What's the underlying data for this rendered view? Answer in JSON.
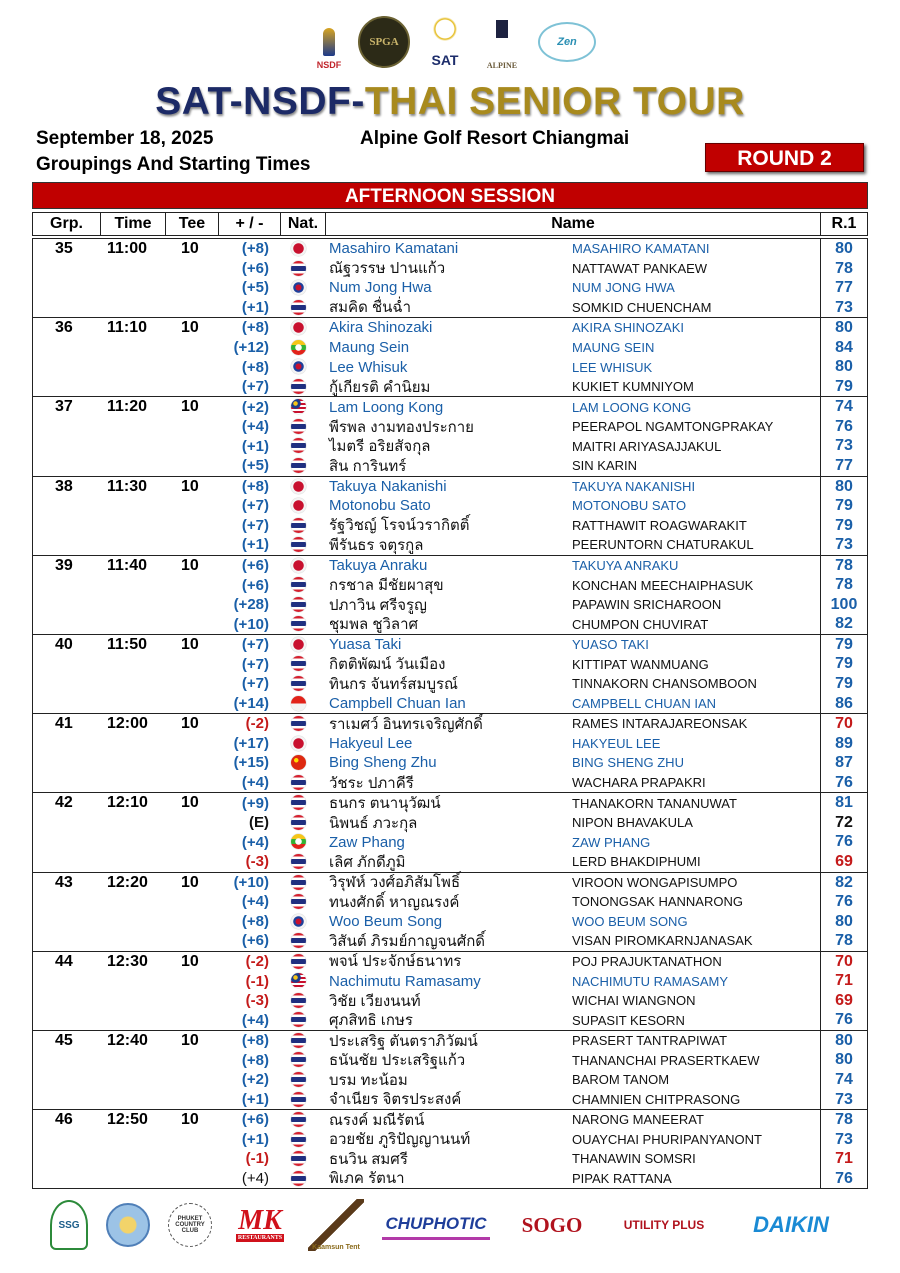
{
  "logos_top": [
    "NSDF",
    "SPGA",
    "SAT",
    "ALPINE",
    "Zen"
  ],
  "title_part1": "SAT-NSDF-",
  "title_part2": "THAI SENIOR TOUR",
  "date": "September 18, 2025",
  "subtitle": "Groupings And Starting Times",
  "venue": "Alpine Golf Resort Chiangmai",
  "round": "ROUND 2",
  "session": "AFTERNOON SESSION",
  "columns": {
    "grp": "Grp.",
    "time": "Time",
    "tee": "Tee",
    "diff": "+ / -",
    "nat": "Nat.",
    "name": "Name",
    "r1": "R.1"
  },
  "colors": {
    "over": "#1a5fa8",
    "under": "#c41a1a",
    "banner": "#c00000",
    "title_navy": "#1c2a66",
    "title_gold": "#a88a1e"
  },
  "groups": [
    {
      "grp": "35",
      "time": "11:00",
      "tee": "10",
      "players": [
        {
          "diff": "(+8)",
          "tone": "over",
          "flag": "jp",
          "name": "Masahiro  Kamatani",
          "name_en": "MASAHIRO  KAMATANI",
          "r1": "80",
          "foreign": true
        },
        {
          "diff": "(+6)",
          "tone": "over",
          "flag": "th",
          "name": "ณัฐวรรษ  ปานแก้ว",
          "name_en": "NATTAWAT  PANKAEW",
          "r1": "78",
          "foreign": false
        },
        {
          "diff": "(+5)",
          "tone": "over",
          "flag": "kr",
          "name": "Num Jong Hwa",
          "name_en": "NUM JONG HWA",
          "r1": "77",
          "foreign": true
        },
        {
          "diff": "(+1)",
          "tone": "over",
          "flag": "th",
          "name": "สมคิด  ชื่นฉ่ำ",
          "name_en": "SOMKID CHUENCHAM",
          "r1": "73",
          "foreign": false
        }
      ]
    },
    {
      "grp": "36",
      "time": "11:10",
      "tee": "10",
      "players": [
        {
          "diff": "(+8)",
          "tone": "over",
          "flag": "jp",
          "name": "Akira  Shinozaki",
          "name_en": "AKIRA  SHINOZAKI",
          "r1": "80",
          "foreign": true
        },
        {
          "diff": "(+12)",
          "tone": "over",
          "flag": "mm",
          "name": "Maung Sein",
          "name_en": "MAUNG SEIN",
          "r1": "84",
          "foreign": true
        },
        {
          "diff": "(+8)",
          "tone": "over",
          "flag": "kr",
          "name": "Lee Whisuk",
          "name_en": "LEE WHISUK",
          "r1": "80",
          "foreign": true
        },
        {
          "diff": "(+7)",
          "tone": "over",
          "flag": "th",
          "name": "กู้เกียรติ  คำนิยม",
          "name_en": "KUKIET  KUMNIYOM",
          "r1": "79",
          "foreign": false
        }
      ]
    },
    {
      "grp": "37",
      "time": "11:20",
      "tee": "10",
      "players": [
        {
          "diff": "(+2)",
          "tone": "over",
          "flag": "my",
          "name": "Lam Loong Kong",
          "name_en": "LAM LOONG KONG",
          "r1": "74",
          "foreign": true
        },
        {
          "diff": "(+4)",
          "tone": "over",
          "flag": "th",
          "name": "พีรพล  งามทองประกาย",
          "name_en": "PEERAPOL  NGAMTONGPRAKAY",
          "r1": "76",
          "foreign": false
        },
        {
          "diff": "(+1)",
          "tone": "over",
          "flag": "th",
          "name": "ไมตรี  อริยสัจกุล",
          "name_en": "MAITRI  ARIYASAJJAKUL",
          "r1": "73",
          "foreign": false
        },
        {
          "diff": "(+5)",
          "tone": "over",
          "flag": "th",
          "name": "สิน  การินทร์",
          "name_en": "SIN  KARIN",
          "r1": "77",
          "foreign": false
        }
      ]
    },
    {
      "grp": "38",
      "time": "11:30",
      "tee": "10",
      "players": [
        {
          "diff": "(+8)",
          "tone": "over",
          "flag": "jp",
          "name": "Takuya  Nakanishi",
          "name_en": "TAKUYA  NAKANISHI",
          "r1": "80",
          "foreign": true
        },
        {
          "diff": "(+7)",
          "tone": "over",
          "flag": "jp",
          "name": "Motonobu  Sato",
          "name_en": "MOTONOBU  SATO",
          "r1": "79",
          "foreign": true
        },
        {
          "diff": "(+7)",
          "tone": "over",
          "flag": "th",
          "name": "รัฐวิชญ์  โรจน์วรากิตติ์",
          "name_en": "RATTHAWIT  ROAGWARAKIT",
          "r1": "79",
          "foreign": false
        },
        {
          "diff": "(+1)",
          "tone": "over",
          "flag": "th",
          "name": "พีรันธร  จตุรกูล",
          "name_en": "PEERUNTORN  CHATURAKUL",
          "r1": "73",
          "foreign": false
        }
      ]
    },
    {
      "grp": "39",
      "time": "11:40",
      "tee": "10",
      "players": [
        {
          "diff": "(+6)",
          "tone": "over",
          "flag": "jp",
          "name": "Takuya  Anraku",
          "name_en": "TAKUYA  ANRAKU",
          "r1": "78",
          "foreign": true
        },
        {
          "diff": "(+6)",
          "tone": "over",
          "flag": "th",
          "name": "กรชาล  มีชัยผาสุข",
          "name_en": "KONCHAN  MEECHAIPHASUK",
          "r1": "78",
          "foreign": false
        },
        {
          "diff": "(+28)",
          "tone": "over",
          "flag": "th",
          "name": "ปภาวิน  ศรีจรูญ",
          "name_en": "PAPAWIN SRICHAROON",
          "r1": "100",
          "foreign": false
        },
        {
          "diff": "(+10)",
          "tone": "over",
          "flag": "th",
          "name": "ชุมพล  ชูวิลาศ",
          "name_en": "CHUMPON  CHUVIRAT",
          "r1": "82",
          "foreign": false
        }
      ]
    },
    {
      "grp": "40",
      "time": "11:50",
      "tee": "10",
      "players": [
        {
          "diff": "(+7)",
          "tone": "over",
          "flag": "jp",
          "name": "Yuasa  Taki",
          "name_en": "YUASO  TAKI",
          "r1": "79",
          "foreign": true
        },
        {
          "diff": "(+7)",
          "tone": "over",
          "flag": "th",
          "name": "กิตติพัฒน์  วันเมือง",
          "name_en": "KITTIPAT  WANMUANG",
          "r1": "79",
          "foreign": false
        },
        {
          "diff": "(+7)",
          "tone": "over",
          "flag": "th",
          "name": "ทินกร  จันทร์สมบูรณ์",
          "name_en": "TINNAKORN  CHANSOMBOON",
          "r1": "79",
          "foreign": false
        },
        {
          "diff": "(+14)",
          "tone": "over",
          "flag": "sg",
          "name": "Campbell Chuan Ian",
          "name_en": "CAMPBELL CHUAN IAN",
          "r1": "86",
          "foreign": true
        }
      ]
    },
    {
      "grp": "41",
      "time": "12:00",
      "tee": "10",
      "players": [
        {
          "diff": "(-2)",
          "tone": "under",
          "flag": "th",
          "name": "ราเมศว์  อินทรเจริญศักดิ์",
          "name_en": "RAMES  INTARAJAREONSAK",
          "r1": "70",
          "foreign": false
        },
        {
          "diff": "(+17)",
          "tone": "over",
          "flag": "jp",
          "name": "Hakyeul Lee",
          "name_en": "HAKYEUL  LEE",
          "r1": "89",
          "foreign": true
        },
        {
          "diff": "(+15)",
          "tone": "over",
          "flag": "cn",
          "name": "Bing Sheng Zhu",
          "name_en": "BING SHENG ZHU",
          "r1": "87",
          "foreign": true
        },
        {
          "diff": "(+4)",
          "tone": "over",
          "flag": "th",
          "name": "วัชระ  ปภาคีรี",
          "name_en": "WACHARA  PRAPAKRI",
          "r1": "76",
          "foreign": false
        }
      ]
    },
    {
      "grp": "42",
      "time": "12:10",
      "tee": "10",
      "players": [
        {
          "diff": "(+9)",
          "tone": "over",
          "flag": "th",
          "name": "ธนกร  ตนานุวัฒน์",
          "name_en": "THANAKORN  TANANUWAT",
          "r1": "81",
          "foreign": false
        },
        {
          "diff": "(E)",
          "tone": "even",
          "flag": "th",
          "name": "นิพนธ์  ภวะกุล",
          "name_en": "NIPON  BHAVAKULA",
          "r1": "72",
          "foreign": false
        },
        {
          "diff": "(+4)",
          "tone": "over",
          "flag": "mm",
          "name": "Zaw  Phang",
          "name_en": "ZAW  PHANG",
          "r1": "76",
          "foreign": true
        },
        {
          "diff": "(-3)",
          "tone": "under",
          "flag": "th",
          "name": "เลิศ  ภักดีภูมิ",
          "name_en": "LERD  BHAKDIPHUMI",
          "r1": "69",
          "foreign": false
        }
      ]
    },
    {
      "grp": "43",
      "time": "12:20",
      "tee": "10",
      "players": [
        {
          "diff": "(+10)",
          "tone": "over",
          "flag": "th",
          "name": "วิรุฬห์  วงศ์อภิสัมโพธิ์",
          "name_en": "VIROON  WONGAPISUMPO",
          "r1": "82",
          "foreign": false
        },
        {
          "diff": "(+4)",
          "tone": "over",
          "flag": "th",
          "name": "ทนงศักดิ์  หาญณรงค์",
          "name_en": "TONONGSAK HANNARONG",
          "r1": "76",
          "foreign": false
        },
        {
          "diff": "(+8)",
          "tone": "over",
          "flag": "kr",
          "name": "Woo  Beum Song",
          "name_en": "WOO  BEUM SONG",
          "r1": "80",
          "foreign": true
        },
        {
          "diff": "(+6)",
          "tone": "over",
          "flag": "th",
          "name": "วิสันต์  ภิรมย์กาญจนศักดิ์",
          "name_en": "VISAN  PIROMKARNJANASAK",
          "r1": "78",
          "foreign": false
        }
      ]
    },
    {
      "grp": "44",
      "time": "12:30",
      "tee": "10",
      "players": [
        {
          "diff": "(-2)",
          "tone": "under",
          "flag": "th",
          "name": "พจน์  ประจักษ์ธนาทร",
          "name_en": "POJ  PRAJUKTANATHON",
          "r1": "70",
          "foreign": false
        },
        {
          "diff": "(-1)",
          "tone": "under",
          "flag": "my",
          "name": "Nachimutu  Ramasamy",
          "name_en": "NACHIMUTU  RAMASAMY",
          "r1": "71",
          "foreign": true
        },
        {
          "diff": "(-3)",
          "tone": "under",
          "flag": "th",
          "name": "วิชัย  เวียงนนท์",
          "name_en": "WICHAI  WIANGNON",
          "r1": "69",
          "foreign": false
        },
        {
          "diff": "(+4)",
          "tone": "over",
          "flag": "th",
          "name": "ศุภสิทธิ  เกษร",
          "name_en": "SUPASIT  KESORN",
          "r1": "76",
          "foreign": false
        }
      ]
    },
    {
      "grp": "45",
      "time": "12:40",
      "tee": "10",
      "players": [
        {
          "diff": "(+8)",
          "tone": "over",
          "flag": "th",
          "name": "ประเสริฐ  ตันตราภิวัฒน์",
          "name_en": "PRASERT  TANTRAPIWAT",
          "r1": "80",
          "foreign": false
        },
        {
          "diff": "(+8)",
          "tone": "over",
          "flag": "th",
          "name": "ธนันชัย  ประเสริฐแก้ว",
          "name_en": "THANANCHAI  PRASERTKAEW",
          "r1": "80",
          "foreign": false
        },
        {
          "diff": "(+2)",
          "tone": "over",
          "flag": "th",
          "name": "บรม  ทะน้อม",
          "name_en": "BAROM  TANOM",
          "r1": "74",
          "foreign": false
        },
        {
          "diff": "(+1)",
          "tone": "over",
          "flag": "th",
          "name": "จำเนียร  จิตรประสงค์",
          "name_en": "CHAMNIEN CHITPRASONG",
          "r1": "73",
          "foreign": false
        }
      ]
    },
    {
      "grp": "46",
      "time": "12:50",
      "tee": "10",
      "players": [
        {
          "diff": "(+6)",
          "tone": "over",
          "flag": "th",
          "name": "ณรงค์  มณีรัตน์",
          "name_en": "NARONG MANEERAT",
          "r1": "78",
          "foreign": false
        },
        {
          "diff": "(+1)",
          "tone": "over",
          "flag": "th",
          "name": "อวยชัย  ภูริปัญญานนท์",
          "name_en": "OUAYCHAI  PHURIPANYANONT",
          "r1": "73",
          "foreign": false
        },
        {
          "diff": "(-1)",
          "tone": "under",
          "flag": "th",
          "name": "ธนวิน  สมศรี",
          "name_en": "THANAWIN SOMSRI",
          "r1": "71",
          "foreign": false
        },
        {
          "diff": "(+4)",
          "tone": "plain",
          "flag": "th",
          "name": "พิเภค รัตนา",
          "name_en": "PIPAK  RATTANA",
          "r1": "76",
          "foreign": false
        }
      ]
    }
  ],
  "sponsors": {
    "ssg": "SSG",
    "ccc": "PHUKET COUNTRY CLUB",
    "mk": "MK",
    "mk_sub": "RESTAURANTS",
    "kt": "Kaamsun Tent",
    "chu": "CHUPHOTIC",
    "sogo": "SOGO",
    "util": "UTILITY PLUS",
    "daikin": "DAIKIN"
  }
}
